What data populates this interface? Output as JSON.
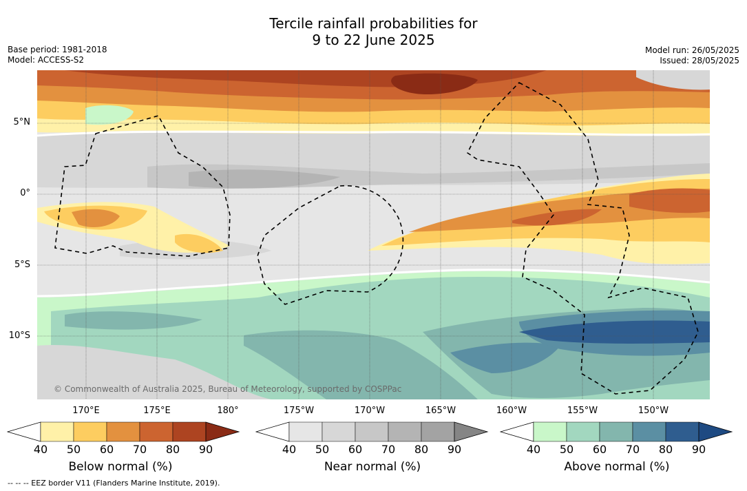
{
  "title_line1": "Tercile rainfall probabilities for",
  "title_line2": "9 to 22 June 2025",
  "base_period": "Base period: 1981-2018",
  "model": "Model: ACCESS-S2",
  "model_run": "Model run: 26/05/2025",
  "issued": "Issued: 28/05/2025",
  "copyright": "© Commonwealth of Australia 2025, Bureau of Meteorology, supported by COSPPac",
  "eez_note": "--  --  -- EEZ border V11 (Flanders Marine Institute, 2019).",
  "lat_labels": [
    "5°N",
    "0°",
    "5°S",
    "10°S"
  ],
  "lon_labels": [
    "170°E",
    "175°E",
    "180°",
    "175°W",
    "170°W",
    "165°W",
    "160°W",
    "155°W",
    "150°W"
  ],
  "colorbars": [
    {
      "label": "Below normal (%)",
      "ticks": [
        "40",
        "50",
        "60",
        "70",
        "80",
        "90"
      ],
      "colors": [
        "#fff1a8",
        "#fdcd60",
        "#e3913f",
        "#cc6430",
        "#ad4421",
        "#8a2b15"
      ]
    },
    {
      "label": "Near normal (%)",
      "ticks": [
        "40",
        "50",
        "60",
        "70",
        "80",
        "90"
      ],
      "colors": [
        "#e6e6e6",
        "#d7d7d7",
        "#c7c7c7",
        "#b4b4b4",
        "#a3a3a3",
        "#858585"
      ]
    },
    {
      "label": "Above normal (%)",
      "ticks": [
        "40",
        "50",
        "60",
        "70",
        "80",
        "90"
      ],
      "colors": [
        "#c9f7c9",
        "#a2d7bf",
        "#83b6ad",
        "#5b8fa3",
        "#2f5d8f",
        "#1e4a82"
      ]
    }
  ],
  "palette": {
    "land_void": "#ffffff",
    "grid": "#555555",
    "eez": "#000000",
    "copyright": "#6a6a6a"
  }
}
